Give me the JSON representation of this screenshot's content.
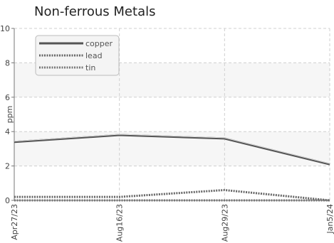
{
  "chart_data": {
    "type": "line",
    "title": "Non-ferrous Metals",
    "ylabel": "ppm",
    "xlabel": "",
    "x": [
      "Apr27/23",
      "Aug16/23",
      "Aug29/23",
      "Jan5/24"
    ],
    "ylim": [
      0,
      10
    ],
    "yticks": [
      "0",
      "2",
      "4",
      "6",
      "8",
      "10"
    ],
    "grid": true,
    "legend_position": "top-left",
    "series": [
      {
        "name": "copper",
        "values": [
          3.4,
          3.8,
          3.6,
          2.1
        ],
        "color": "#555555",
        "style": "solid"
      },
      {
        "name": "lead",
        "values": [
          0.2,
          0.2,
          0.6,
          0.0
        ],
        "color": "#666666",
        "style": "dotted"
      },
      {
        "name": "tin",
        "values": [
          0.0,
          0.0,
          0.0,
          0.0
        ],
        "color": "#777777",
        "style": "dotted"
      }
    ]
  }
}
